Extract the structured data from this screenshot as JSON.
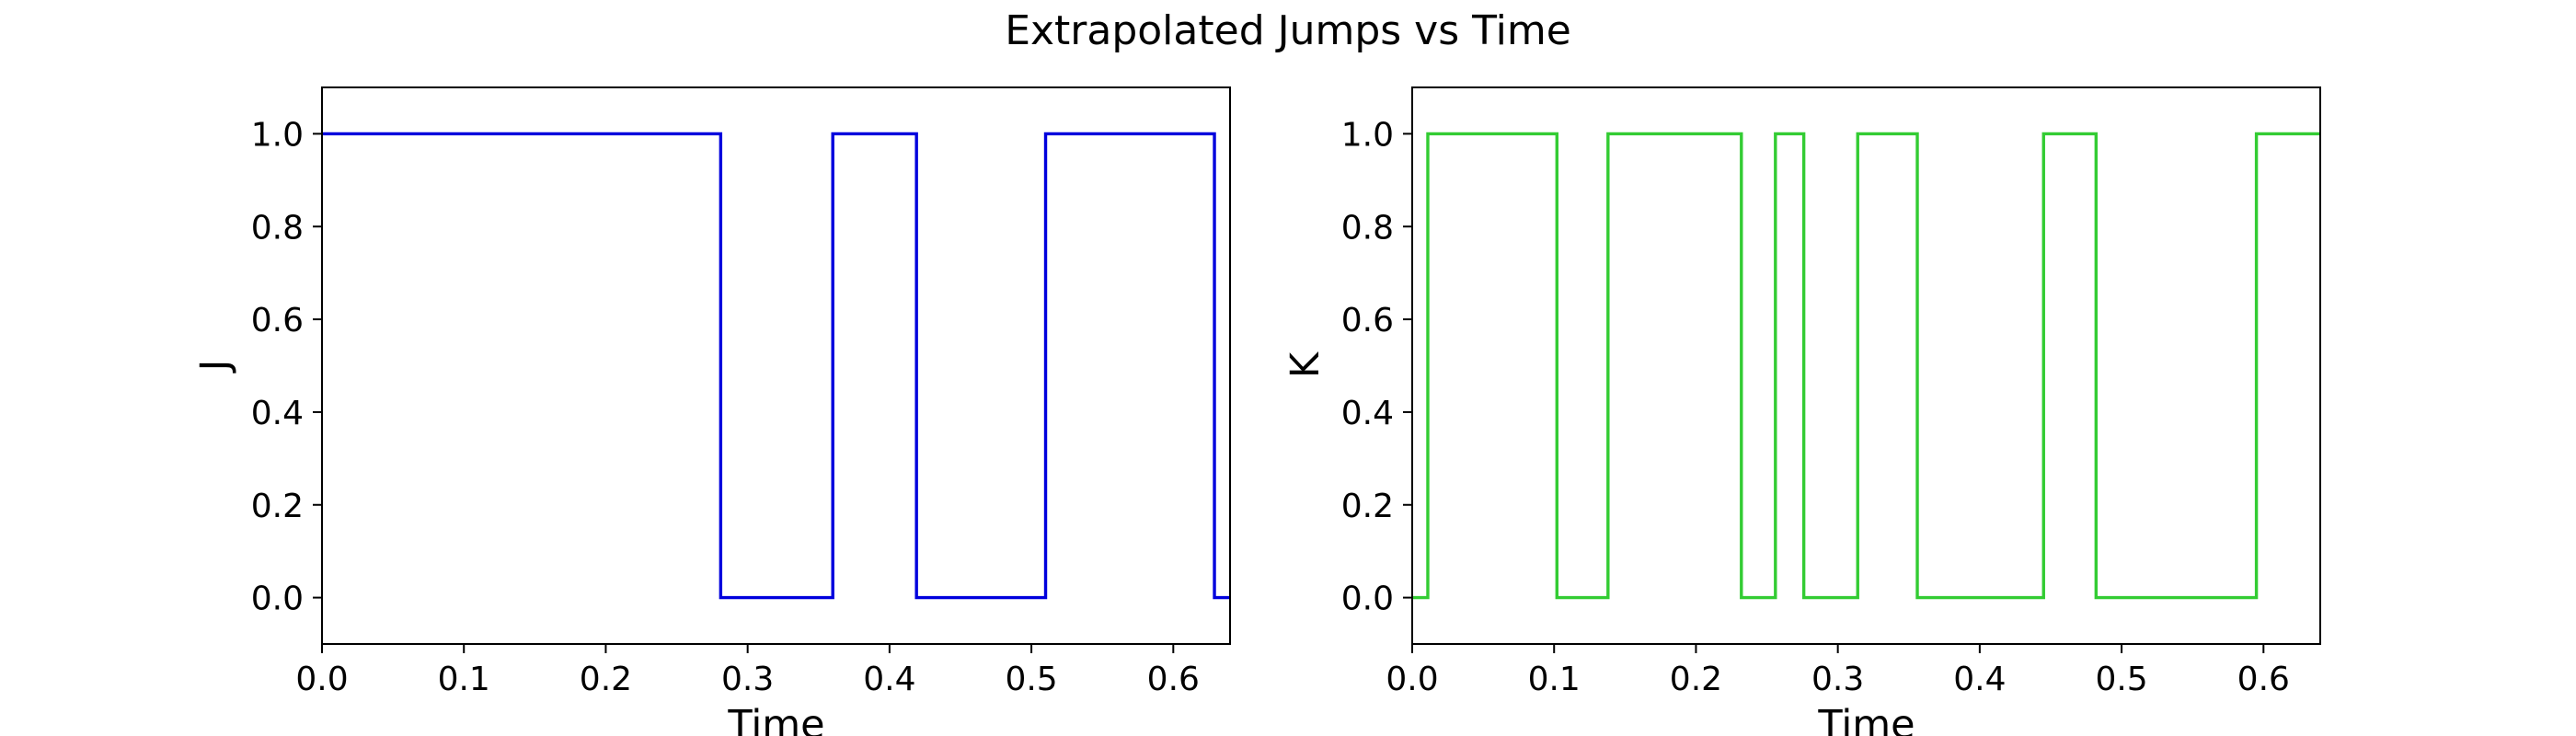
{
  "figure": {
    "title": "Extrapolated Jumps vs Time"
  },
  "chart_data": [
    {
      "type": "line",
      "step": "post",
      "title": "",
      "xlabel": "Time",
      "ylabel": "J",
      "xlim": [
        0.0,
        0.64
      ],
      "ylim": [
        -0.1,
        1.1
      ],
      "xticks": [
        "0.0",
        "0.1",
        "0.2",
        "0.3",
        "0.4",
        "0.5",
        "0.6"
      ],
      "yticks": [
        "0.0",
        "0.2",
        "0.4",
        "0.6",
        "0.8",
        "1.0"
      ],
      "grid": false,
      "color": "#0000dd",
      "series": [
        {
          "x": [
            0.0,
            0.281,
            0.36,
            0.419,
            0.51,
            0.629,
            0.64
          ],
          "y": [
            1,
            0,
            1,
            0,
            1,
            0,
            0
          ]
        }
      ]
    },
    {
      "type": "line",
      "step": "post",
      "title": "",
      "xlabel": "Time",
      "ylabel": "K",
      "xlim": [
        0.0,
        0.64
      ],
      "ylim": [
        -0.1,
        1.1
      ],
      "xticks": [
        "0.0",
        "0.1",
        "0.2",
        "0.3",
        "0.4",
        "0.5",
        "0.6"
      ],
      "yticks": [
        "0.0",
        "0.2",
        "0.4",
        "0.6",
        "0.8",
        "1.0"
      ],
      "grid": false,
      "color": "#33cc33",
      "series": [
        {
          "x": [
            0.0,
            0.011,
            0.102,
            0.138,
            0.232,
            0.256,
            0.276,
            0.314,
            0.356,
            0.445,
            0.482,
            0.595,
            0.64
          ],
          "y": [
            0,
            1,
            0,
            1,
            0,
            1,
            0,
            1,
            0,
            1,
            0,
            1,
            1
          ]
        }
      ]
    }
  ]
}
